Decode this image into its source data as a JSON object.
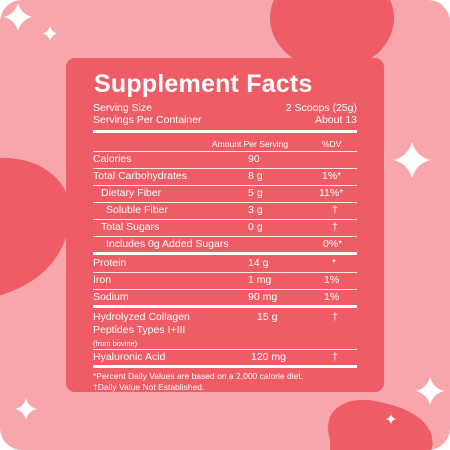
{
  "title": "Supplement Facts",
  "serving": {
    "size_label": "Serving Size",
    "size_value": "2 Scoops (25g)",
    "per_container_label": "Servings Per Container",
    "per_container_value": "About 13"
  },
  "header": {
    "amount": "Amount Per Serving",
    "dv": "%DV"
  },
  "rows": [
    {
      "label": "Calories",
      "amount": "90",
      "dv": ""
    },
    {
      "label": "Total Carbohydrates",
      "amount": "8 g",
      "dv": "1%*"
    },
    {
      "label": "Dietary Fiber",
      "amount": "5 g",
      "dv": "11%*"
    },
    {
      "label": "Soluble Fiber",
      "amount": "3 g",
      "dv": "†"
    },
    {
      "label": "Total Sugars",
      "amount": "0 g",
      "dv": "†"
    },
    {
      "label": "Includes 0g Added Sugars",
      "amount": "",
      "dv": "0%*"
    },
    {
      "label": "Protein",
      "amount": "14 g",
      "dv": "*"
    },
    {
      "label": "Iron",
      "amount": "1 mg",
      "dv": "1%"
    },
    {
      "label": "Sodium",
      "amount": "90 mg",
      "dv": "1%"
    }
  ],
  "collagen": {
    "line1": "Hydrolyzed Collagen",
    "line2": "Peptides Types I+III",
    "note": "(from bovine)",
    "amount": "15 g",
    "dv": "†"
  },
  "hyaluronic": {
    "label": "Hyaluronic Acid",
    "amount": "120 mg",
    "dv": "†"
  },
  "footnotes": {
    "line1": "*Percent Daily Values are based on a 2,000 calorie diet.",
    "line2": "†Daily Value Not Established."
  },
  "colors": {
    "background": "#f7a7ac",
    "panel": "#ee5c66",
    "text": "#ffffff"
  }
}
